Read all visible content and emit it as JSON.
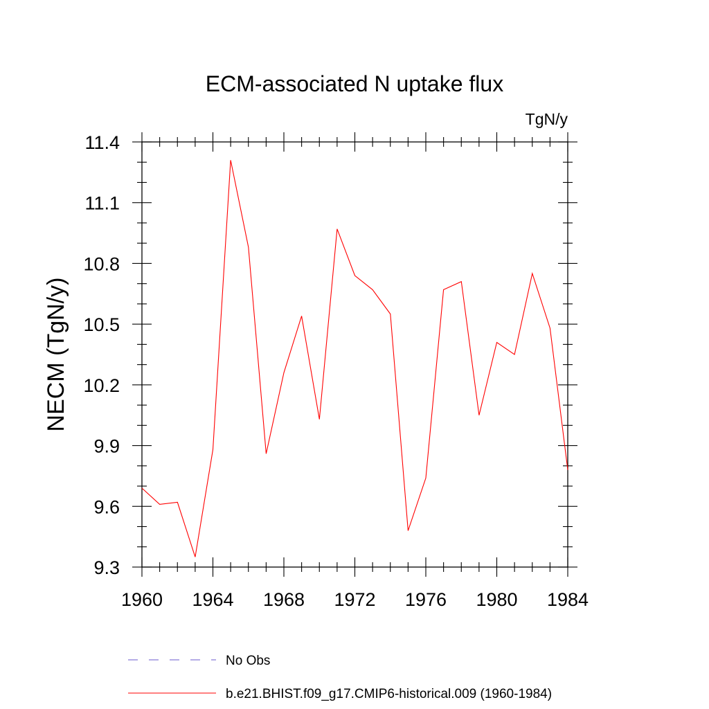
{
  "chart_data": {
    "type": "line",
    "title": "ECM-associated N uptake flux",
    "units": "TgN/y",
    "ylabel": "NECM  (TgN/y)",
    "xlabel": "",
    "xlim": [
      1960,
      1984
    ],
    "ylim": [
      9.3,
      11.4
    ],
    "x_ticks": [
      "1960",
      "1964",
      "1968",
      "1972",
      "1976",
      "1980",
      "1984"
    ],
    "y_ticks": [
      "9.3",
      "9.6",
      "9.9",
      "10.2",
      "10.5",
      "10.8",
      "11.1",
      "11.4"
    ],
    "grid": false,
    "legend_position": "bottom",
    "series": [
      {
        "name": "b.e21.BHIST.f09_g17.CMIP6-historical.009 (1960-1984)",
        "color": "#ff0000",
        "style": "solid",
        "x": [
          1960,
          1961,
          1962,
          1963,
          1964,
          1965,
          1966,
          1967,
          1968,
          1969,
          1970,
          1971,
          1972,
          1973,
          1974,
          1975,
          1976,
          1977,
          1978,
          1979,
          1980,
          1981,
          1982,
          1983,
          1984
        ],
        "values": [
          9.69,
          9.61,
          9.62,
          9.35,
          9.88,
          11.31,
          10.88,
          9.86,
          10.26,
          10.54,
          10.03,
          10.97,
          10.74,
          10.67,
          10.55,
          9.48,
          9.74,
          10.67,
          10.71,
          10.05,
          10.41,
          10.35,
          10.75,
          10.48,
          9.78
        ]
      }
    ],
    "legend": [
      {
        "label": "No Obs",
        "color": "#6a5acd",
        "style": "dashed"
      },
      {
        "label": "b.e21.BHIST.f09_g17.CMIP6-historical.009 (1960-1984)",
        "color": "#ff0000",
        "style": "solid"
      }
    ]
  }
}
